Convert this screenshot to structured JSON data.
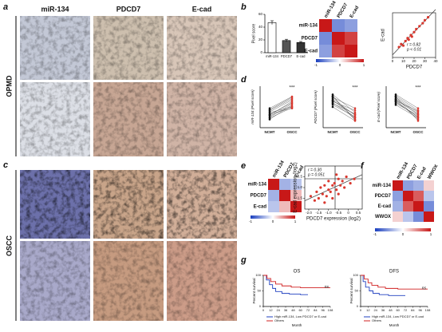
{
  "panel_labels": [
    "a",
    "b",
    "c",
    "d",
    "e",
    "f",
    "g"
  ],
  "panel_a": {
    "columns": [
      "miR-134",
      "PDCD7",
      "E-cad"
    ],
    "row_label": "OPMD"
  },
  "panel_c": {
    "row_label": "OSCC"
  },
  "panel_b_bar": {
    "type": "bar",
    "ylabel": "Pixel score",
    "categories": [
      "miR-134",
      "PDCD7",
      "E-cad"
    ],
    "values": [
      47,
      19,
      16
    ],
    "errors": [
      3,
      2,
      1.5
    ],
    "colors": [
      "#ffffff",
      "#555555",
      "#333333"
    ],
    "ylim": [
      0,
      60
    ],
    "yticks": [
      0,
      20,
      40,
      60
    ]
  },
  "panel_b_heatmap": {
    "type": "heatmap",
    "labels": [
      "miR-134",
      "PDCD7",
      "E-cad"
    ],
    "matrix": [
      [
        1,
        -0.6,
        -0.5
      ],
      [
        -0.6,
        1,
        0.82
      ],
      [
        -0.5,
        0.82,
        1
      ]
    ],
    "clim": [
      -1,
      1
    ],
    "colorbar_ticks": [
      -1,
      0,
      1
    ]
  },
  "panel_b_scatter": {
    "type": "scatter",
    "xlabel": "PDCD7",
    "ylabel": "E-cad",
    "annotation": [
      "r = 0.82",
      "p < 0.01"
    ],
    "x": [
      6,
      8,
      10,
      12,
      14,
      15,
      17,
      18,
      20,
      22,
      25,
      28,
      30,
      33
    ],
    "y": [
      7,
      9,
      8,
      11,
      13,
      12,
      15,
      14,
      17,
      19,
      21,
      23,
      25,
      27
    ],
    "color": "#d9382f",
    "xlim": [
      0,
      40
    ],
    "xticks": [
      0,
      10,
      20,
      30,
      40
    ],
    "ylim": [
      0,
      30
    ]
  },
  "panel_d": {
    "categories": [
      "NCMT",
      "OSCC"
    ],
    "plots": [
      {
        "ylabel": "miR-134 (Pixel score)",
        "annotation": "***",
        "ylim": [
          0,
          60
        ],
        "ncmt": [
          18,
          22,
          15,
          25,
          20,
          12,
          28,
          17,
          23,
          19,
          14,
          26
        ],
        "oscc": [
          38,
          30,
          35,
          42,
          28,
          33,
          45,
          31,
          40,
          36,
          29,
          44
        ]
      },
      {
        "ylabel": "PDCD7 (Pixel score)",
        "annotation": "***",
        "ylim": [
          0,
          60
        ],
        "ncmt": [
          40,
          35,
          45,
          38,
          42,
          30,
          48,
          36,
          44,
          33,
          39,
          46
        ],
        "oscc": [
          15,
          20,
          12,
          25,
          18,
          10,
          22,
          14,
          28,
          16,
          19,
          11
        ]
      },
      {
        "ylabel": "E-cad (Pixel score)",
        "annotation": "***",
        "ylim": [
          0,
          60
        ],
        "ncmt": [
          42,
          38,
          46,
          35,
          40,
          44,
          37,
          48,
          33,
          41,
          39,
          45
        ],
        "oscc": [
          20,
          15,
          25,
          18,
          12,
          22,
          16,
          28,
          14,
          19,
          24,
          10
        ]
      }
    ]
  },
  "panel_e_heatmap": {
    "type": "heatmap",
    "labels": [
      "miR-134",
      "PDCD7",
      "E-cad"
    ],
    "matrix": [
      [
        1,
        -0.4,
        -0.3
      ],
      [
        -0.4,
        1,
        0.3
      ],
      [
        -0.3,
        0.3,
        1
      ]
    ],
    "clim": [
      -1,
      1
    ],
    "colorbar_ticks": [
      -1,
      0,
      1
    ]
  },
  "panel_e_scatter": {
    "type": "scatter",
    "xlabel": "PDCD7 expression (log2)",
    "ylabel": "E-cad expression (log2)",
    "annotation": [
      "r = 0.30",
      "p = 0.051"
    ],
    "color": "#d9382f",
    "x": [
      -1.9,
      -1.7,
      -1.6,
      -1.5,
      -1.4,
      -1.3,
      -1.2,
      -1.1,
      -1.0,
      -1.0,
      -0.9,
      -0.8,
      -0.8,
      -0.7,
      -0.6,
      -0.5,
      -0.5,
      -0.4,
      -0.3,
      -0.2,
      -0.1,
      0.1,
      0.3,
      -1.2,
      -0.6
    ],
    "y": [
      -1.4,
      -1.6,
      -1.2,
      -1.5,
      -1.0,
      -1.3,
      -0.9,
      -1.4,
      -1.1,
      -0.7,
      -1.2,
      -0.9,
      -1.5,
      -0.8,
      -1.1,
      -0.6,
      -1.3,
      -0.9,
      -0.7,
      -1.0,
      -0.5,
      -0.8,
      -0.6,
      -1.7,
      -0.4
    ],
    "xlim": [
      -2.2,
      0.7
    ],
    "xticks": [
      {
        "value": -2,
        "label": "-2.0"
      },
      -1.5,
      {
        "value": -1,
        "label": "-1.0"
      },
      -0.5,
      0,
      0.5
    ],
    "ylim": [
      -2,
      0
    ],
    "yticks": [
      -0.5,
      {
        "value": -1,
        "label": "-1.0"
      },
      -1.5
    ]
  },
  "panel_f_heatmap": {
    "type": "heatmap",
    "labels": [
      "miR-134",
      "PDCD7",
      "E-cad",
      "WWOX"
    ],
    "matrix": [
      [
        1,
        -0.5,
        -0.4,
        0.2
      ],
      [
        -0.5,
        1,
        0.7,
        -0.3
      ],
      [
        -0.4,
        0.7,
        1,
        -0.6
      ],
      [
        0.2,
        -0.3,
        -0.6,
        1
      ]
    ],
    "clim": [
      -1,
      1
    ],
    "colorbar_ticks": [
      -1,
      0,
      1
    ]
  },
  "panel_g": {
    "ylabel": "Percent survival",
    "xlabel": "Month",
    "xlim": [
      0,
      108
    ],
    "xticks": [
      0,
      12,
      24,
      36,
      48,
      60,
      72,
      84,
      96,
      108
    ],
    "ylim": [
      0,
      100
    ],
    "yticks": [
      0,
      50,
      100
    ],
    "plots": [
      {
        "title": "OS",
        "annotation": "ns",
        "series": [
          {
            "name": "High miR-134, Low PDCD7 or E-cad",
            "color": "#2040c0",
            "x": [
              0,
              5,
              10,
              15,
              20,
              30,
              42,
              60,
              72
            ],
            "y": [
              100,
              85,
              70,
              58,
              48,
              42,
              40,
              38,
              38
            ]
          },
          {
            "name": "Others",
            "color": "#d02020",
            "x": [
              0,
              6,
              12,
              20,
              30,
              45,
              60,
              108
            ],
            "y": [
              100,
              90,
              80,
              72,
              66,
              62,
              60,
              60
            ]
          }
        ]
      },
      {
        "title": "DFS",
        "annotation": "ns",
        "series": [
          {
            "name": "High miR-134, Low PDCD7 or E-cad",
            "color": "#2040c0",
            "x": [
              0,
              4,
              8,
              14,
              20,
              30,
              45,
              72
            ],
            "y": [
              100,
              80,
              62,
              50,
              42,
              38,
              35,
              35
            ]
          },
          {
            "name": "Others",
            "color": "#d02020",
            "x": [
              0,
              6,
              12,
              18,
              28,
              40,
              60,
              108
            ],
            "y": [
              100,
              88,
              76,
              68,
              62,
              58,
              56,
              56
            ]
          }
        ]
      }
    ]
  }
}
